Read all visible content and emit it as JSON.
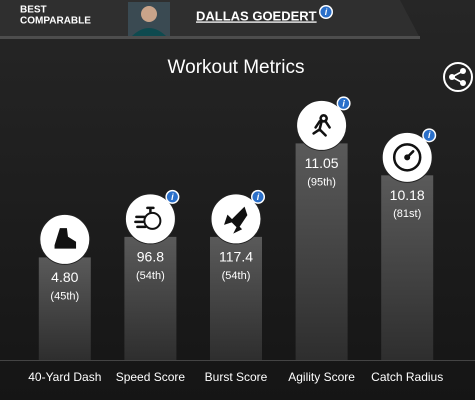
{
  "header": {
    "label_lines": [
      "BEST",
      "COMPARABLE"
    ],
    "player": "DALLAS GOEDERT"
  },
  "chart_data": {
    "type": "bar",
    "title": "Workout Metrics",
    "categories": [
      "40-Yard Dash",
      "Speed Score",
      "Burst Score",
      "Agility Score",
      "Catch Radius"
    ],
    "values": [
      45,
      54,
      54,
      95,
      81
    ],
    "value_labels": [
      "(45th)",
      "(54th)",
      "(54th)",
      "(95th)",
      "(81st)"
    ],
    "scores": [
      "4.80",
      "96.8",
      "117.4",
      "11.05",
      "10.18"
    ],
    "info": [
      false,
      true,
      true,
      true,
      true
    ],
    "ylim": [
      0,
      100
    ],
    "color": "#4a4a4a"
  }
}
